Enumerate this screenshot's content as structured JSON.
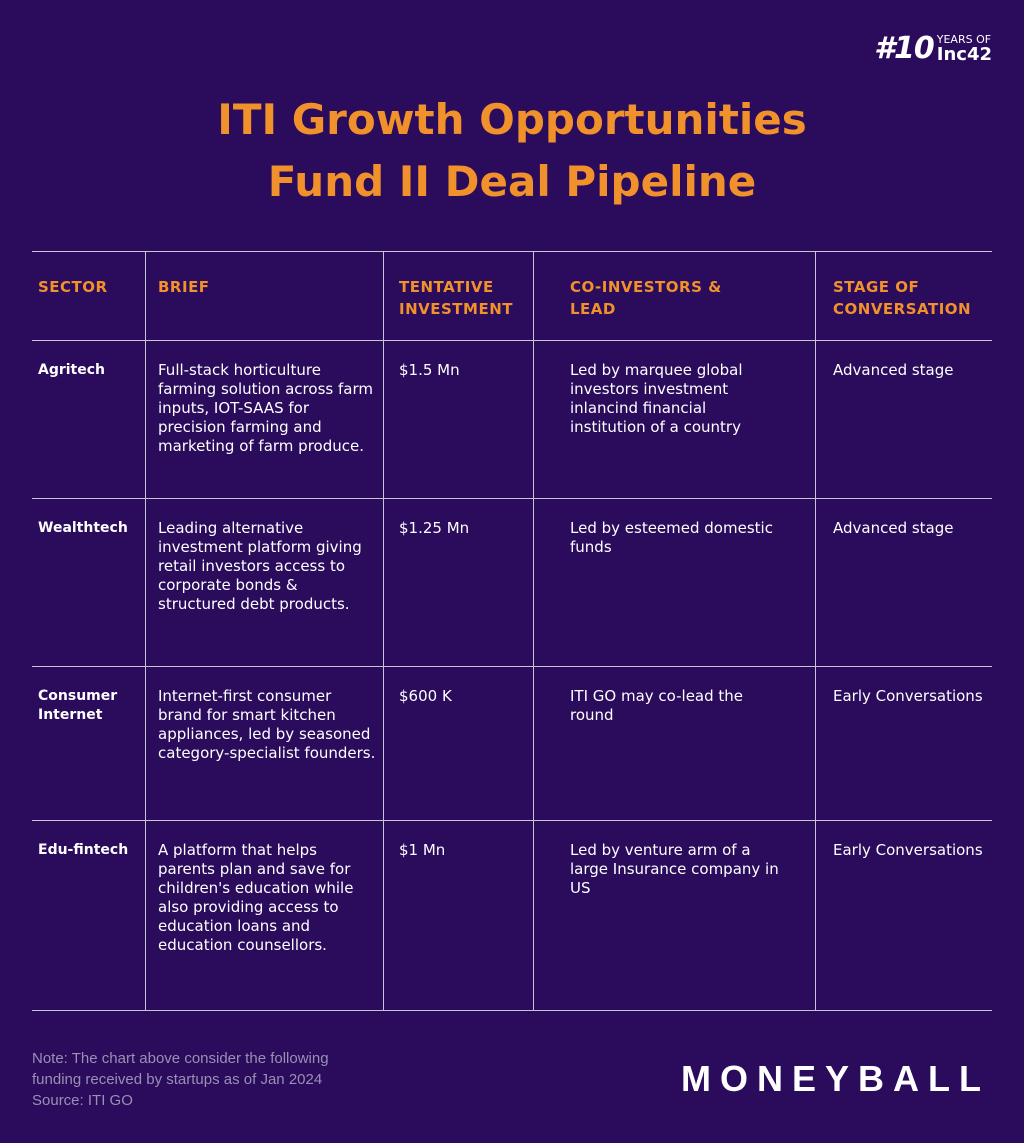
{
  "header": {
    "title": [
      "ITI Growth Opportunities",
      "Fund II Deal Pipeline"
    ],
    "badge": {
      "number": "#10",
      "top": "YEARS OF",
      "brand": "Inc42"
    }
  },
  "table": {
    "columns": [
      "SECTOR",
      "BRIEF",
      "TENTATIVE INVESTMENT",
      "CO-INVESTORS & LEAD",
      "STAGE OF CONVERSATION"
    ],
    "rows": [
      [
        "Agritech",
        "Full-stack horticulture farming solution across farm inputs, IOT-SAAS for precision farming and marketing of farm produce.",
        "$1.5 Mn",
        "Led by marquee global investors investment inlancind financial institution of a country",
        "Advanced stage"
      ],
      [
        "Wealthtech",
        "Leading alternative investment platform giving retail investors access to corporate bonds & structured debt products.",
        "$1.25 Mn",
        "Led by esteemed domestic funds",
        "Advanced stage"
      ],
      [
        "Consumer Internet",
        "Internet-first consumer brand for smart kitchen appliances, led by seasoned category-specialist founders.",
        "$600 K",
        "ITI GO may co-lead the round",
        "Early Conversations"
      ],
      [
        "Edu-fintech",
        "A platform that helps parents plan and save for children's education while also providing access to education loans and education counsellors.",
        "$1 Mn",
        "Led by venture arm of a large Insurance company in US",
        "Early Conversations"
      ]
    ]
  },
  "footer": {
    "note": [
      "Note: The chart above consider the following",
      "funding received by startups as of Jan 2024",
      "Source: ITI GO"
    ],
    "brand": "MONEYBALL"
  }
}
